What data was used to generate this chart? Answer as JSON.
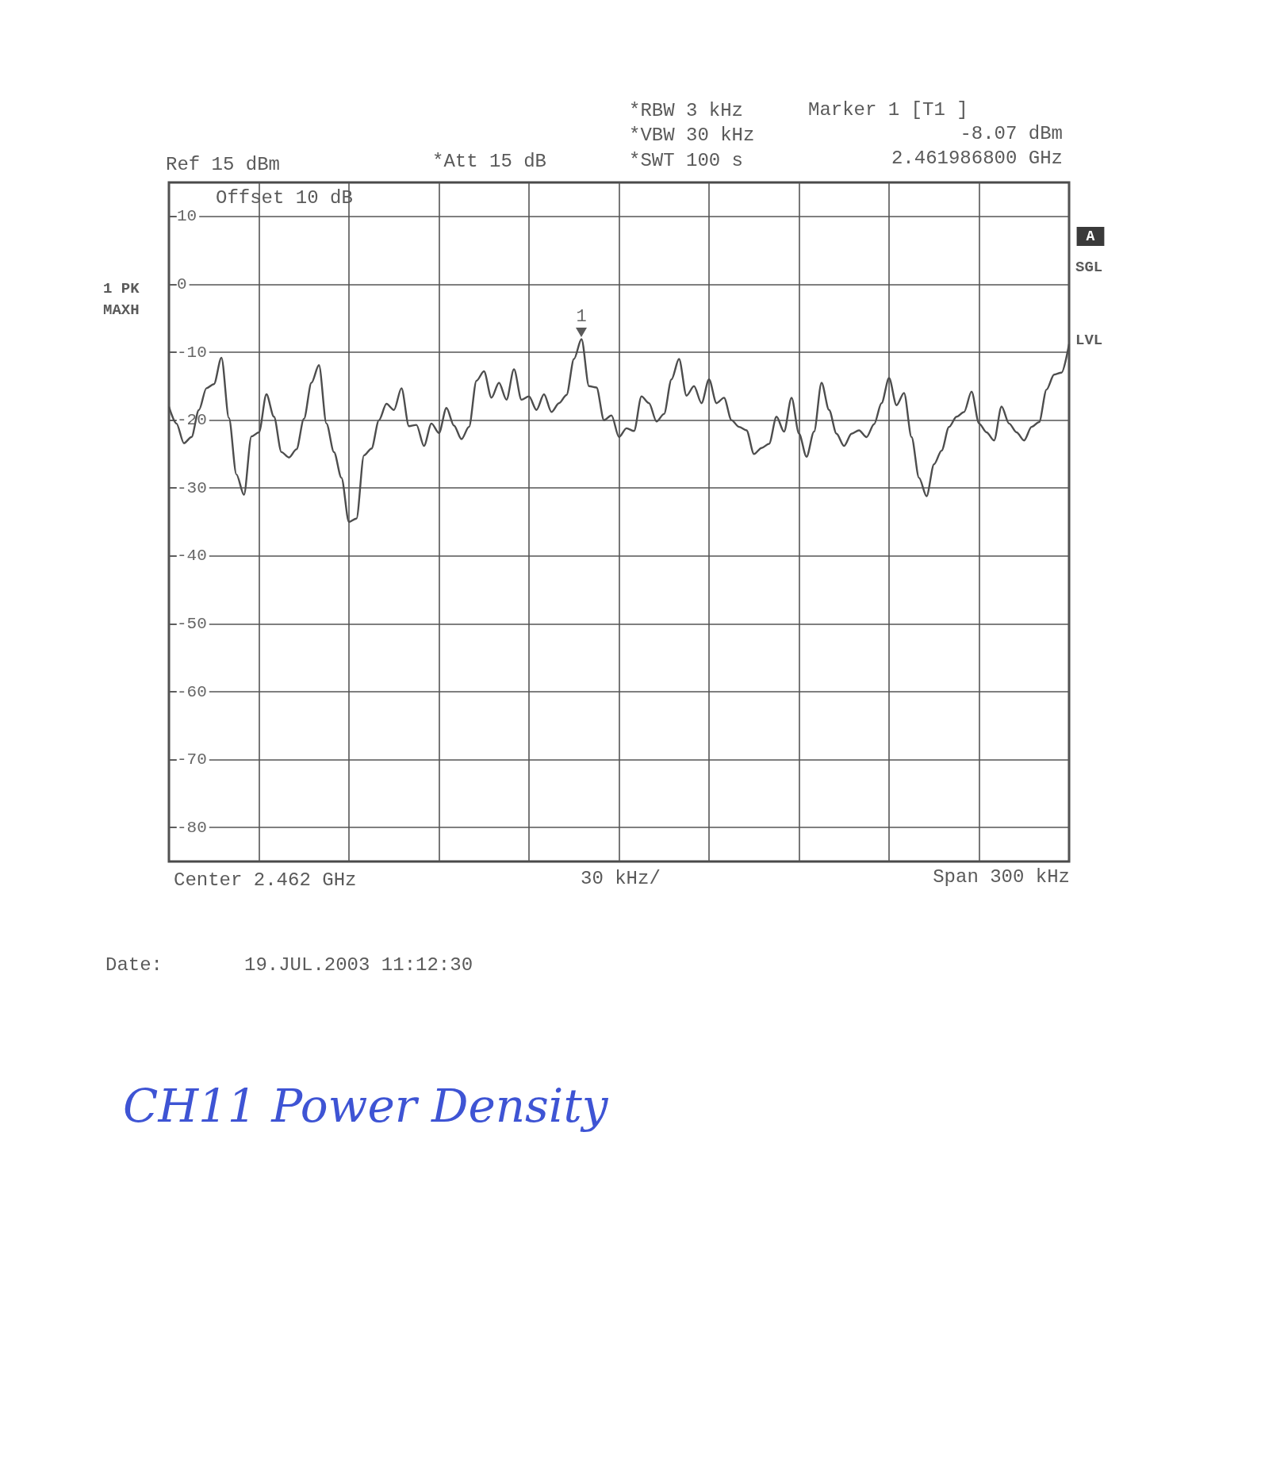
{
  "chart_data": {
    "type": "line",
    "title": "CH11 Power Density",
    "annotations": [
      "Ref 15 dBm",
      "*Att 15 dB",
      "*RBW 3 kHz",
      "*VBW 30 kHz",
      "*SWT 100 s",
      "Marker 1 [T1 ]",
      "-8.07 dBm",
      "2.461986800 GHz",
      "Offset 10 dB",
      "1 PK",
      "MAXH",
      "A",
      "SGL",
      "LVL",
      "Center 2.462 GHz",
      "30 kHz/",
      "Span 300 kHz",
      "Date:",
      "19.JUL.2003 11:12:30",
      {
        "text": "1",
        "y": -8.07
      }
    ],
    "categories": [
      null,
      null,
      null,
      null,
      null,
      null,
      null,
      null,
      null,
      null,
      null,
      null,
      null,
      null,
      null,
      null,
      null,
      null,
      null,
      null,
      null,
      null,
      null,
      null,
      null,
      null,
      null,
      null,
      null,
      null,
      null,
      null,
      null,
      null,
      null,
      null,
      null,
      null,
      null,
      null,
      null,
      null,
      null,
      null,
      null,
      null,
      null,
      null,
      null,
      null,
      null,
      null,
      null,
      null,
      null,
      null,
      null,
      null,
      null,
      null,
      null,
      null,
      null,
      null,
      null,
      null,
      null,
      null,
      null,
      null,
      null,
      null,
      null,
      null,
      null,
      null,
      null,
      null,
      null,
      null,
      null,
      null,
      null,
      null,
      null,
      null,
      null,
      null,
      null,
      null,
      null,
      null,
      null,
      null,
      null,
      null,
      null,
      null,
      null,
      null,
      null,
      null,
      null,
      null,
      null,
      null,
      null,
      null,
      null,
      null,
      null,
      null,
      null,
      null,
      null,
      null,
      null,
      null,
      null,
      null,
      null
    ],
    "values": [
      -18,
      -20.5,
      -23.4,
      -22.5,
      -18.5,
      -15.3,
      -14.7,
      -10.8,
      -19.7,
      -28,
      -31,
      -22.4,
      -21.8,
      -16.2,
      -19.5,
      -24.7,
      -25.5,
      -24.3,
      -19.8,
      -14.5,
      -11.9,
      -20.5,
      -24.7,
      -28.5,
      -35,
      -34.5,
      -25.2,
      -24.2,
      -20,
      -17.6,
      -18.5,
      -15.3,
      -20.9,
      -20.7,
      -23.8,
      -20.5,
      -21.9,
      -18.2,
      -20.8,
      -22.8,
      -21,
      -14.2,
      -12.8,
      -16.7,
      -14.5,
      -17,
      -12.5,
      -17,
      -16.5,
      -18.5,
      -16.2,
      -18.8,
      -17.5,
      -16.3,
      -11,
      -8.07,
      -15,
      -15.2,
      -20,
      -19.3,
      -22.5,
      -21.2,
      -21.6,
      -16.5,
      -17.5,
      -20.2,
      -19.1,
      -14,
      -11,
      -16.4,
      -15,
      -17.5,
      -14,
      -17.5,
      -16.7,
      -20,
      -21,
      -21.5,
      -25,
      -24.1,
      -23.5,
      -19.5,
      -21.7,
      -16.7,
      -22,
      -25.4,
      -21.7,
      -14.5,
      -18.5,
      -22,
      -23.8,
      -22,
      -21.5,
      -22.5,
      -20.6,
      -17.5,
      -13.8,
      -17.8,
      -16,
      -22.5,
      -28.5,
      -31.2,
      -26.5,
      -24.5,
      -21,
      -19.5,
      -18.8,
      -15.8,
      -20.5,
      -21.8,
      -23,
      -18,
      -20.5,
      -21.8,
      -23,
      -21,
      -20.3,
      -15.5,
      -13.3,
      -13,
      -8.8
    ],
    "color": "#4d4d4d",
    "ylim": [
      -85,
      15
    ],
    "yticks": [
      10,
      0,
      -10,
      -20,
      -30,
      -40,
      -50,
      -60,
      -70,
      -80
    ],
    "grid": true,
    "tick_labels": "y",
    "marker": "none"
  }
}
